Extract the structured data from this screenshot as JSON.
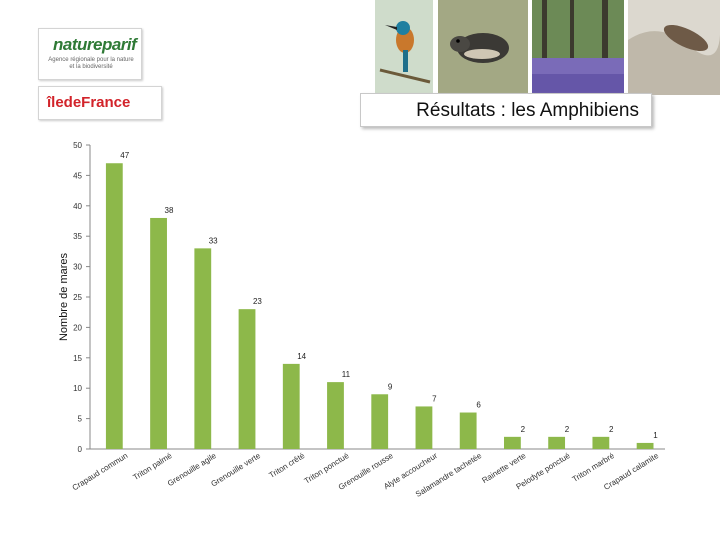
{
  "header": {
    "natureparif_logo": {
      "name": "natureparif",
      "tagline": "Agence régionale pour la nature et la biodiversité"
    },
    "iledefrance_logo": {
      "name": "îledeFrance"
    },
    "title": "Résultats : les Amphibiens",
    "photos": [
      "kingfisher-photo",
      "shrew-photo",
      "bluebell-forest-photo",
      "river-fish-photo"
    ]
  },
  "chart_data": {
    "type": "bar",
    "title": "",
    "xlabel": "",
    "ylabel": "Nombre de mares",
    "ylim": [
      0,
      50
    ],
    "yticks": [
      0,
      5,
      10,
      15,
      20,
      25,
      30,
      35,
      40,
      45,
      50
    ],
    "grid": false,
    "legend": "none",
    "bar_color": "#8db84a",
    "categories": [
      "Crapaud commun",
      "Triton palmé",
      "Grenouille agile",
      "Grenouille verte",
      "Triton crêté",
      "Triton ponctué",
      "Grenouille rousse",
      "Alyte accoucheur",
      "Salamandre tachetée",
      "Rainette verte",
      "Pelodyte ponctué",
      "Triton marbré",
      "Crapaud calamite"
    ],
    "values": [
      47,
      38,
      33,
      23,
      14,
      11,
      9,
      7,
      6,
      2,
      2,
      2,
      1
    ]
  }
}
